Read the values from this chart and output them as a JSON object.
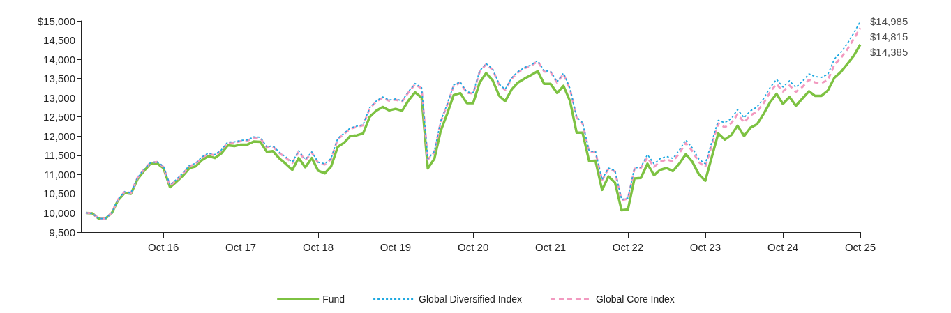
{
  "chart_data": {
    "type": "line",
    "x": [
      "2015-10",
      "2015-11",
      "2015-12",
      "2016-01",
      "2016-02",
      "2016-03",
      "2016-04",
      "2016-05",
      "2016-06",
      "2016-07",
      "2016-08",
      "2016-09",
      "2016-10",
      "2016-11",
      "2016-12",
      "2017-01",
      "2017-02",
      "2017-03",
      "2017-04",
      "2017-05",
      "2017-06",
      "2017-07",
      "2017-08",
      "2017-09",
      "2017-10",
      "2017-11",
      "2017-12",
      "2018-01",
      "2018-02",
      "2018-03",
      "2018-04",
      "2018-05",
      "2018-06",
      "2018-07",
      "2018-08",
      "2018-09",
      "2018-10",
      "2018-11",
      "2018-12",
      "2019-01",
      "2019-02",
      "2019-03",
      "2019-04",
      "2019-05",
      "2019-06",
      "2019-07",
      "2019-08",
      "2019-09",
      "2019-10",
      "2019-11",
      "2019-12",
      "2020-01",
      "2020-02",
      "2020-03",
      "2020-04",
      "2020-05",
      "2020-06",
      "2020-07",
      "2020-08",
      "2020-09",
      "2020-10",
      "2020-11",
      "2020-12",
      "2021-01",
      "2021-02",
      "2021-03",
      "2021-04",
      "2021-05",
      "2021-06",
      "2021-07",
      "2021-08",
      "2021-09",
      "2021-10",
      "2021-11",
      "2021-12",
      "2022-01",
      "2022-02",
      "2022-03",
      "2022-04",
      "2022-05",
      "2022-06",
      "2022-07",
      "2022-08",
      "2022-09",
      "2022-10",
      "2022-11",
      "2022-12",
      "2023-01",
      "2023-02",
      "2023-03",
      "2023-04",
      "2023-05",
      "2023-06",
      "2023-07",
      "2023-08",
      "2023-09",
      "2023-10",
      "2023-12",
      "2024-01",
      "2024-02",
      "2024-03",
      "2024-04",
      "2024-05",
      "2024-06",
      "2024-07",
      "2024-08",
      "2024-09",
      "2024-10",
      "2024-11",
      "2024-12",
      "2025-01",
      "2025-02",
      "2025-03",
      "2025-04",
      "2025-05",
      "2025-06",
      "2025-07",
      "2025-08",
      "2025-09",
      "2025-10"
    ],
    "series": [
      {
        "name": "Fund",
        "color": "#7dc242",
        "line_style": "solid",
        "values": [
          10000,
          9990,
          9850,
          9850,
          10000,
          10330,
          10520,
          10500,
          10880,
          11090,
          11280,
          11290,
          11170,
          10670,
          10810,
          10970,
          11170,
          11210,
          11380,
          11480,
          11430,
          11550,
          11760,
          11740,
          11780,
          11780,
          11860,
          11850,
          11590,
          11610,
          11420,
          11280,
          11120,
          11430,
          11190,
          11430,
          11100,
          11030,
          11210,
          11720,
          11830,
          12000,
          12020,
          12070,
          12500,
          12660,
          12760,
          12670,
          12710,
          12660,
          12930,
          13140,
          13000,
          11160,
          11410,
          12140,
          12590,
          13070,
          13120,
          12860,
          12860,
          13400,
          13640,
          13450,
          13050,
          12910,
          13220,
          13400,
          13500,
          13590,
          13690,
          13360,
          13360,
          13120,
          13310,
          12910,
          12090,
          12090,
          11350,
          11360,
          10600,
          10950,
          10790,
          10070,
          10090,
          10900,
          10910,
          11280,
          10980,
          11120,
          11170,
          11090,
          11290,
          11530,
          11330,
          11000,
          10840,
          12070,
          11910,
          12030,
          12270,
          12000,
          12220,
          12310,
          12570,
          12880,
          13100,
          12840,
          13020,
          12790,
          12980,
          13170,
          13050,
          13050,
          13190,
          13520,
          13670,
          13880,
          14100,
          14385
        ]
      },
      {
        "name": "Global Diversified Index",
        "color": "#1fa9e1",
        "line_style": "dotted",
        "values": [
          10000,
          9990,
          9850,
          9850,
          10010,
          10350,
          10550,
          10520,
          10920,
          11130,
          11310,
          11330,
          11220,
          10730,
          10870,
          11040,
          11240,
          11290,
          11460,
          11560,
          11520,
          11640,
          11850,
          11850,
          11890,
          11900,
          11980,
          11970,
          11720,
          11750,
          11580,
          11460,
          11320,
          11620,
          11390,
          11590,
          11320,
          11280,
          11420,
          11940,
          12080,
          12210,
          12260,
          12300,
          12740,
          12910,
          13020,
          12940,
          12970,
          12920,
          13160,
          13370,
          13260,
          11410,
          11600,
          12390,
          12840,
          13330,
          13410,
          13150,
          13130,
          13700,
          13890,
          13750,
          13350,
          13220,
          13520,
          13680,
          13790,
          13850,
          13970,
          13700,
          13690,
          13410,
          13640,
          13240,
          12500,
          12350,
          11610,
          11600,
          10870,
          11170,
          11100,
          10350,
          10390,
          11170,
          11190,
          11520,
          11280,
          11410,
          11470,
          11420,
          11640,
          11900,
          11690,
          11400,
          11280,
          12410,
          12350,
          12460,
          12690,
          12480,
          12660,
          12760,
          12970,
          13260,
          13480,
          13280,
          13440,
          13270,
          13430,
          13620,
          13550,
          13530,
          13610,
          14010,
          14180,
          14410,
          14690,
          14985
        ]
      },
      {
        "name": "Global Core Index",
        "color": "#f29ac0",
        "line_style": "dashed",
        "values": [
          10000,
          9990,
          9850,
          9850,
          10010,
          10350,
          10550,
          10520,
          10920,
          11130,
          11310,
          11330,
          11200,
          10710,
          10850,
          11020,
          11220,
          11270,
          11440,
          11540,
          11500,
          11620,
          11830,
          11830,
          11870,
          11880,
          11960,
          11950,
          11700,
          11730,
          11560,
          11440,
          11300,
          11600,
          11370,
          11570,
          11300,
          11260,
          11400,
          11920,
          12060,
          12190,
          12240,
          12280,
          12720,
          12890,
          13000,
          12920,
          12950,
          12900,
          13140,
          13350,
          13240,
          11390,
          11580,
          12370,
          12820,
          13310,
          13390,
          13130,
          13110,
          13680,
          13870,
          13730,
          13330,
          13200,
          13500,
          13660,
          13770,
          13830,
          13950,
          13680,
          13670,
          13390,
          13620,
          13220,
          12480,
          12330,
          11590,
          11580,
          10850,
          11150,
          11080,
          10330,
          10370,
          11150,
          11170,
          11440,
          11200,
          11330,
          11390,
          11340,
          11560,
          11820,
          11610,
          11320,
          11200,
          12330,
          12230,
          12340,
          12570,
          12360,
          12540,
          12640,
          12850,
          13140,
          13360,
          13160,
          13320,
          13150,
          13280,
          13470,
          13400,
          13380,
          13460,
          13860,
          14030,
          14260,
          14540,
          14815
        ]
      }
    ],
    "xlim": [
      "2015-09-08",
      "2025-10"
    ],
    "xticks": [
      {
        "value": "2016-10",
        "label": "Oct 16"
      },
      {
        "value": "2017-10",
        "label": "Oct 17"
      },
      {
        "value": "2018-10",
        "label": "Oct 18"
      },
      {
        "value": "2019-10",
        "label": "Oct 19"
      },
      {
        "value": "2020-10",
        "label": "Oct 20"
      },
      {
        "value": "2021-10",
        "label": "Oct 21"
      },
      {
        "value": "2022-10",
        "label": "Oct 22"
      },
      {
        "value": "2023-10",
        "label": "Oct 23"
      },
      {
        "value": "2024-10",
        "label": "Oct 24"
      },
      {
        "value": "2025-10",
        "label": "Oct 25"
      }
    ],
    "ylim": [
      9500,
      15000
    ],
    "yticks": [
      {
        "value": 9500,
        "label": "9,500"
      },
      {
        "value": 10000,
        "label": "10,000"
      },
      {
        "value": 10500,
        "label": "10,500"
      },
      {
        "value": 11000,
        "label": "11,000"
      },
      {
        "value": 11500,
        "label": "11,500"
      },
      {
        "value": 12000,
        "label": "12,000"
      },
      {
        "value": 12500,
        "label": "12,500"
      },
      {
        "value": 13000,
        "label": "13,000"
      },
      {
        "value": 13500,
        "label": "13,500"
      },
      {
        "value": 14000,
        "label": "14,000"
      },
      {
        "value": 14500,
        "label": "14,500"
      },
      {
        "value": 15000,
        "label": "$15,000"
      }
    ],
    "annotations": [
      {
        "text": "$14,985",
        "x": "2025-10",
        "y": 14985
      },
      {
        "text": "$14,815",
        "x": "2025-10",
        "y": 14815
      },
      {
        "text": "$14,385",
        "x": "2025-10",
        "y": 14385
      }
    ],
    "grid": false,
    "legend": "bottom",
    "marker": "none"
  }
}
